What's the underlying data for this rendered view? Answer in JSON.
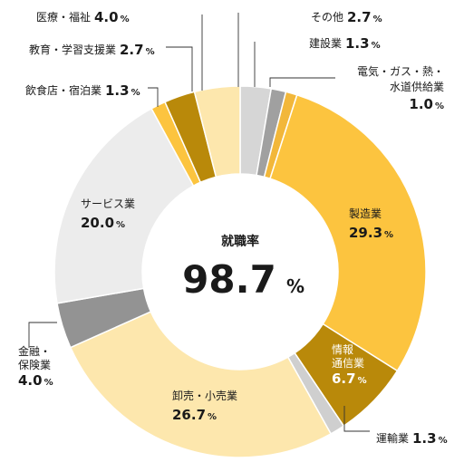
{
  "chart_data": {
    "type": "donut",
    "center": {
      "label": "就職率",
      "value": "98.7",
      "unit": "%"
    },
    "segments": [
      {
        "name": "その他",
        "value": 2.7,
        "color": "#d6d6d6"
      },
      {
        "name": "建設業",
        "value": 1.3,
        "color": "#a0a0a0"
      },
      {
        "name": "電気・ガス・熱・水道供給業",
        "value": 1.0,
        "color": "#f2b73a"
      },
      {
        "name": "製造業",
        "value": 29.3,
        "color": "#fcc43f"
      },
      {
        "name": "情報通信業",
        "value": 6.7,
        "color": "#b9890a"
      },
      {
        "name": "運輸業",
        "value": 1.3,
        "color": "#cfcfcf"
      },
      {
        "name": "卸売・小売業",
        "value": 26.7,
        "color": "#fde7ad"
      },
      {
        "name": "金融・保険業",
        "value": 4.0,
        "color": "#939393"
      },
      {
        "name": "サービス業",
        "value": 20.0,
        "color": "#ececec"
      },
      {
        "name": "飲食店・宿泊業",
        "value": 1.3,
        "color": "#fcc43f"
      },
      {
        "name": "教育・学習支援業",
        "value": 2.7,
        "color": "#b9890a"
      },
      {
        "name": "医療・福祉",
        "value": 4.0,
        "color": "#fde7ad"
      }
    ],
    "labels": [
      {
        "lines": [
          "医療・福祉"
        ],
        "value": "4.0"
      },
      {
        "lines": [
          "教育・学習支援業"
        ],
        "value": "2.7"
      },
      {
        "lines": [
          "飲食店・宿泊業"
        ],
        "value": "1.3"
      },
      {
        "lines": [
          "その他"
        ],
        "value": "2.7"
      },
      {
        "lines": [
          "建設業"
        ],
        "value": "1.3"
      },
      {
        "lines": [
          "電気・ガス・熱・",
          "水道供給業"
        ],
        "value": "1.0"
      },
      {
        "lines": [
          "製造業"
        ],
        "value": "29.3"
      },
      {
        "lines": [
          "情報",
          "通信業"
        ],
        "value": "6.7"
      },
      {
        "lines": [
          "運輸業"
        ],
        "value": "1.3"
      },
      {
        "lines": [
          "卸売・小売業"
        ],
        "value": "26.7"
      },
      {
        "lines": [
          "金融・",
          "保険業"
        ],
        "value": "4.0"
      },
      {
        "lines": [
          "サービス業"
        ],
        "value": "20.0"
      }
    ],
    "unit": "%"
  }
}
